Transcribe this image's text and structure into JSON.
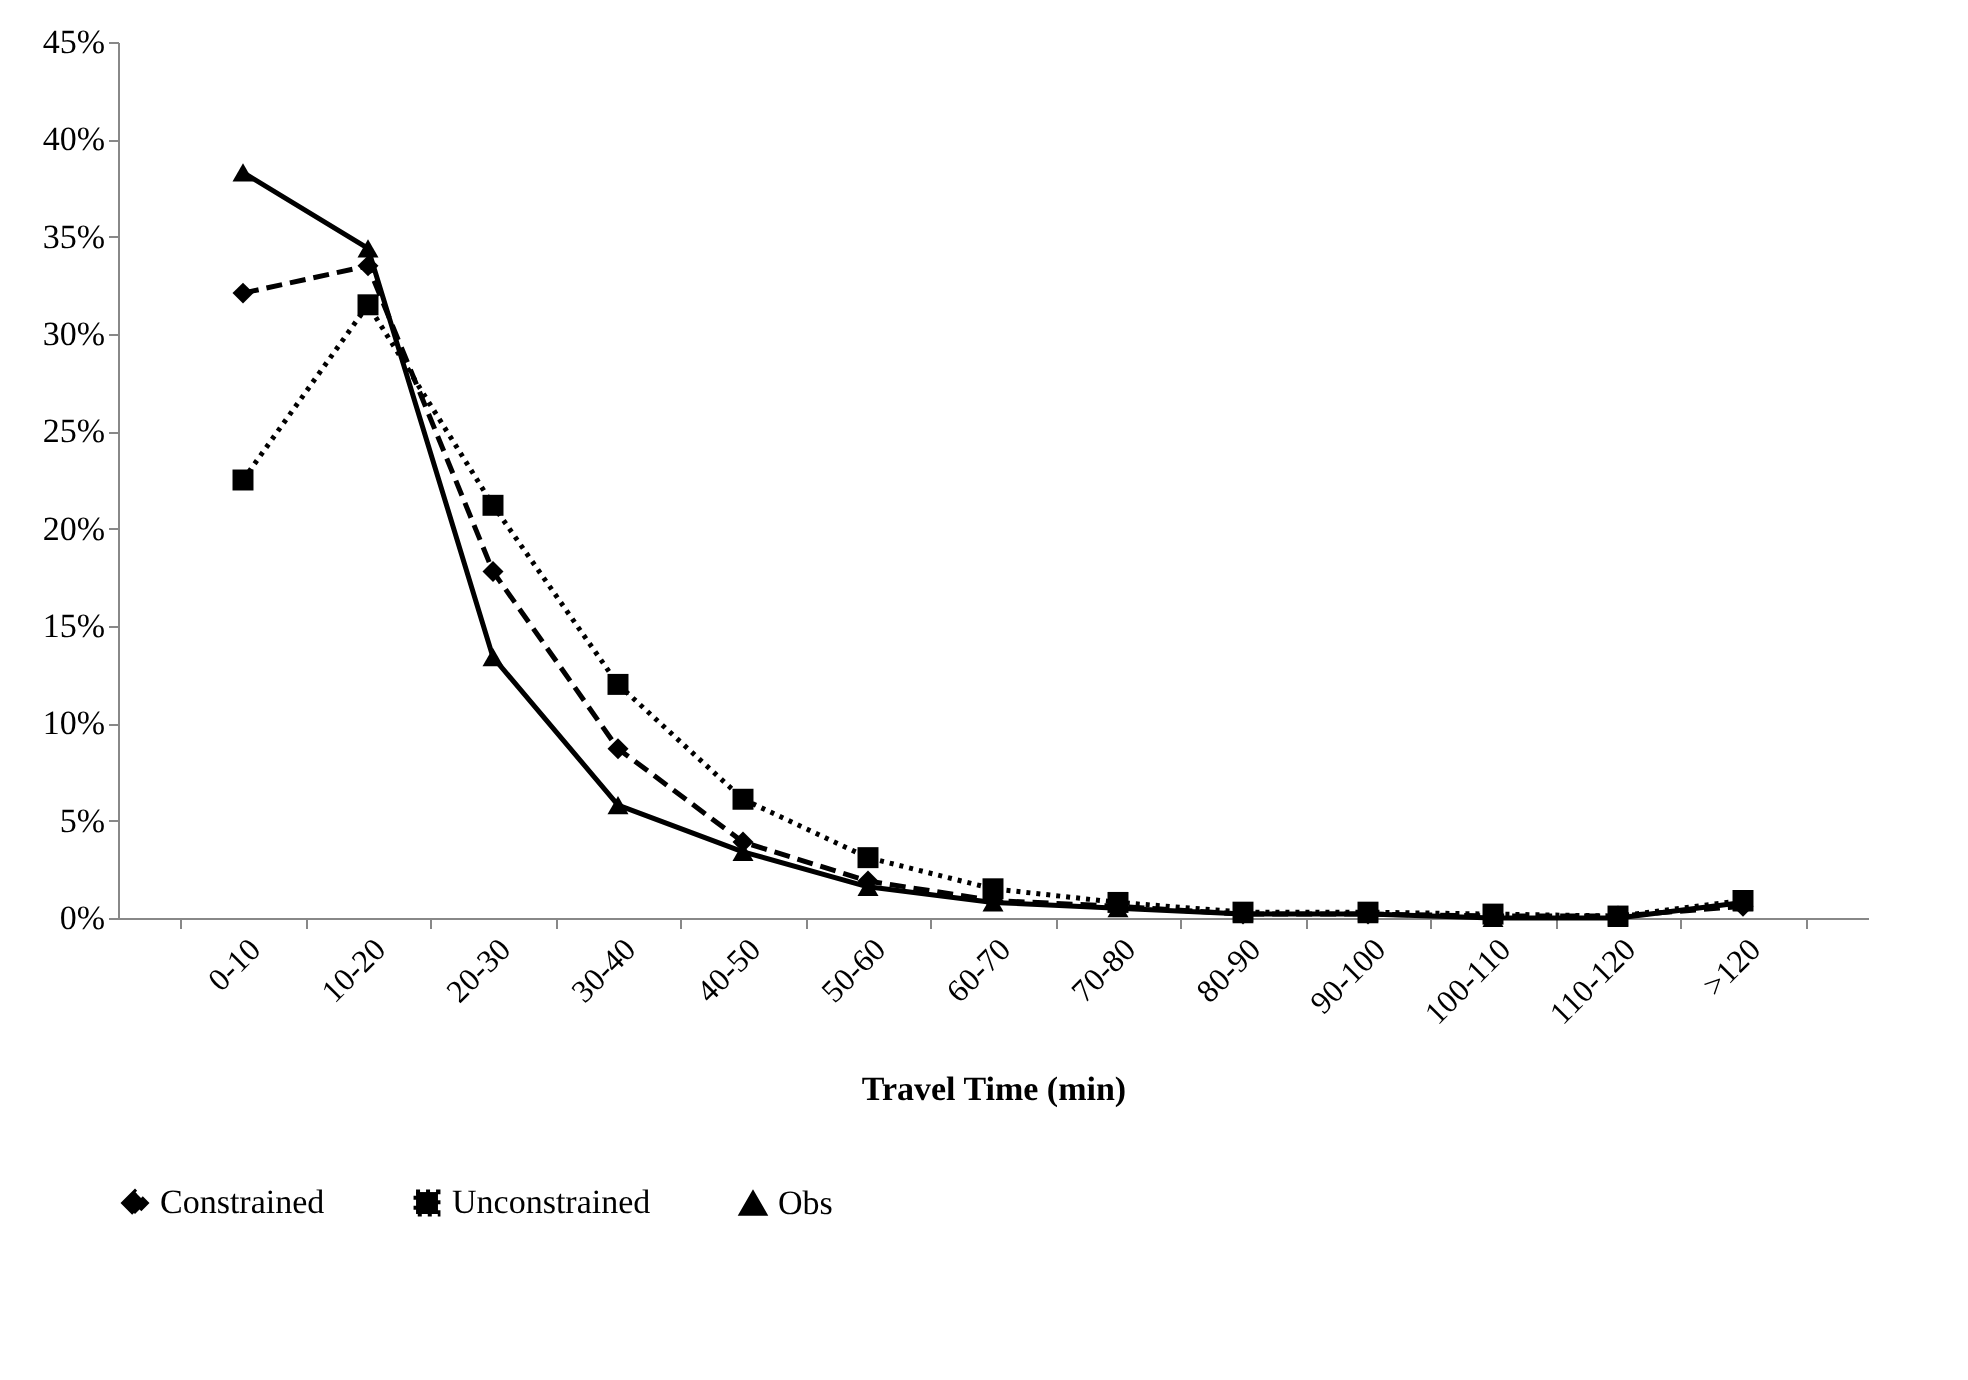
{
  "chart_data": {
    "type": "line",
    "xlabel": "Travel Time (min)",
    "categories": [
      "0-10",
      "10-20",
      "20-30",
      "30-40",
      "40-50",
      "50-60",
      "60-70",
      "70-80",
      "80-90",
      "90-100",
      "100-110",
      "110-120",
      ">120"
    ],
    "series": [
      {
        "name": "Constrained",
        "color": "#000000",
        "marker": "diamond",
        "line_style": "dashed",
        "values": [
          32.1,
          33.5,
          17.8,
          8.7,
          3.9,
          1.9,
          0.9,
          0.6,
          0.2,
          0.2,
          0.1,
          0.1,
          0.6
        ]
      },
      {
        "name": "Unconstrained",
        "color": "#000000",
        "marker": "square",
        "line_style": "dotted",
        "values": [
          22.5,
          31.5,
          21.2,
          12.0,
          6.1,
          3.1,
          1.5,
          0.8,
          0.3,
          0.3,
          0.2,
          0.1,
          0.9
        ]
      },
      {
        "name": "Obs",
        "color": "#000000",
        "marker": "triangle",
        "line_style": "solid",
        "values": [
          38.3,
          34.4,
          13.4,
          5.8,
          3.4,
          1.6,
          0.8,
          0.5,
          0.2,
          0.2,
          0.0,
          0.0,
          0.8
        ]
      }
    ],
    "ylim": [
      0,
      45
    ],
    "yticks": [
      {
        "value": 0,
        "label": "0%"
      },
      {
        "value": 5,
        "label": "5%"
      },
      {
        "value": 10,
        "label": "10%"
      },
      {
        "value": 15,
        "label": "15%"
      },
      {
        "value": 20,
        "label": "20%"
      },
      {
        "value": 25,
        "label": "25%"
      },
      {
        "value": 30,
        "label": "30%"
      },
      {
        "value": 35,
        "label": "35%"
      },
      {
        "value": 40,
        "label": "40%"
      },
      {
        "value": 45,
        "label": "45%"
      }
    ],
    "grid": false,
    "legend": "bottom"
  }
}
